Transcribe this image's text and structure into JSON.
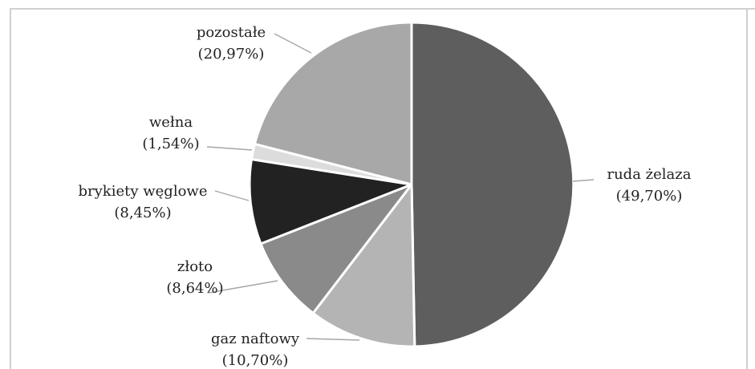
{
  "chart_data": {
    "type": "pie",
    "title": "",
    "start_angle_deg": 0,
    "direction": "clockwise",
    "legend": "none",
    "slices": [
      {
        "label": "ruda żelaza",
        "value": 49.7,
        "value_label": "(49,70%)",
        "color": "#5e5e5e"
      },
      {
        "label": "gaz naftowy",
        "value": 10.7,
        "value_label": "(10,70%)",
        "color": "#b4b4b4"
      },
      {
        "label": "złoto",
        "value": 8.64,
        "value_label": "(8,64%)",
        "color": "#8a8a8a"
      },
      {
        "label": "brykiety węglowe",
        "value": 8.45,
        "value_label": "(8,45%)",
        "color": "#222222"
      },
      {
        "label": "wełna",
        "value": 1.54,
        "value_label": "(1,54%)",
        "color": "#dcdcdc"
      },
      {
        "label": "pozostałe",
        "value": 20.97,
        "value_label": "(20,97%)",
        "color": "#a8a8a8"
      }
    ]
  }
}
